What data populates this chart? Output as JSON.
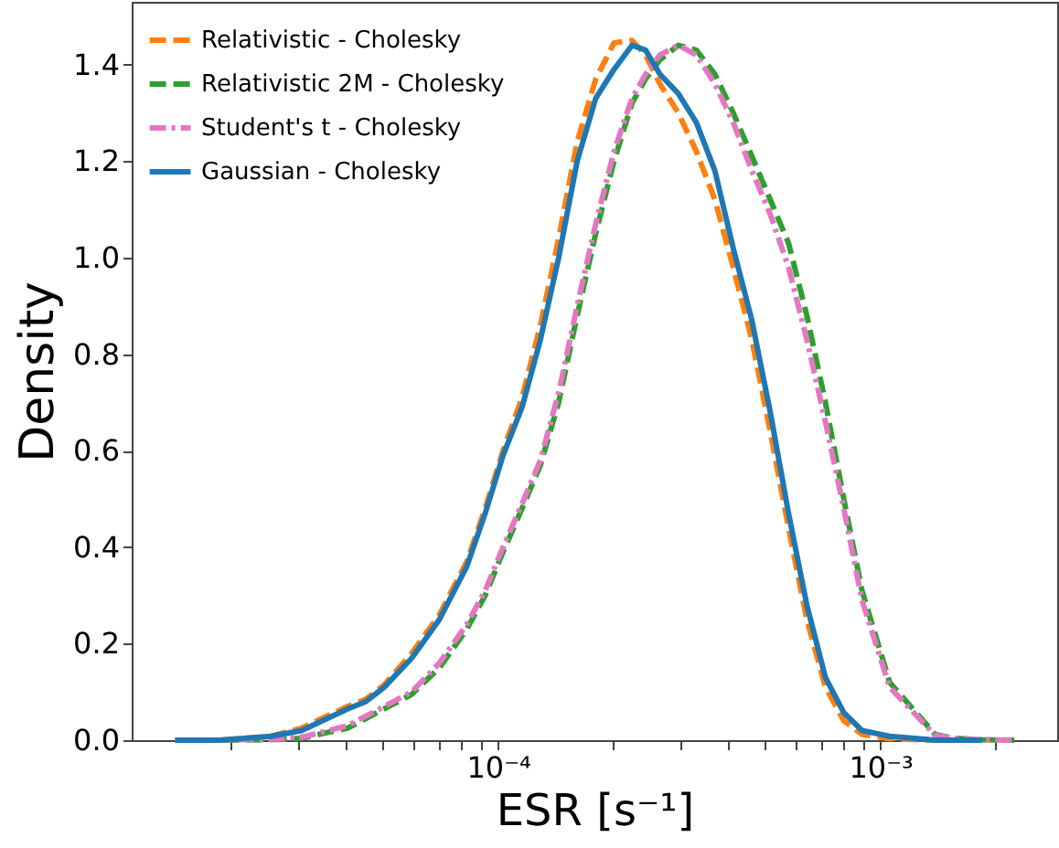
{
  "chart_data": {
    "type": "line",
    "xlabel": "ESR [s⁻¹]",
    "ylabel": "Density",
    "log": "x",
    "grid": false,
    "legend": "top left",
    "marker": "none",
    "x": [
      1.43e-05,
      1.86e-05,
      2.54e-05,
      3.06e-05,
      4.04e-05,
      4.51e-05,
      5.04e-05,
      5.94e-05,
      7.02e-05,
      8.28e-05,
      9.25e-05,
      0.000103,
      0.0001155,
      0.000129,
      0.000144,
      0.000161,
      0.00018,
      0.000201,
      0.000224,
      0.000243,
      0.000265,
      0.000296,
      0.00033,
      0.000369,
      0.000412,
      0.000461,
      0.000515,
      0.000575,
      0.000642,
      0.000718,
      0.000802,
      0.000895,
      0.001057,
      0.00139,
      0.00156,
      0.00184,
      0.00224
    ],
    "series": [
      {
        "name": "Relativistic - Cholesky",
        "color": "#ff7f0e",
        "line_style": "dashed",
        "values": [
          0,
          0,
          0.008,
          0.025,
          0.07,
          0.085,
          0.115,
          0.18,
          0.26,
          0.37,
          0.48,
          0.6,
          0.71,
          0.86,
          1.04,
          1.24,
          1.37,
          1.445,
          1.45,
          1.42,
          1.36,
          1.3,
          1.22,
          1.12,
          0.98,
          0.83,
          0.64,
          0.44,
          0.25,
          0.11,
          0.04,
          0.012,
          0.003,
          0,
          0,
          0,
          null
        ]
      },
      {
        "name": "Relativistic 2M - Cholesky",
        "color": "#2ca02c",
        "line_style": "dashed",
        "values": [
          0,
          0,
          0.001,
          0.004,
          0.025,
          0.045,
          0.065,
          0.095,
          0.15,
          0.23,
          0.3,
          0.39,
          0.48,
          0.57,
          0.7,
          0.88,
          1.05,
          1.2,
          1.32,
          1.37,
          1.41,
          1.44,
          1.43,
          1.38,
          1.3,
          1.21,
          1.12,
          1.03,
          0.88,
          0.7,
          0.5,
          0.31,
          0.12,
          0.012,
          0.004,
          0.001,
          0
        ]
      },
      {
        "name": "Student's t - Cholesky",
        "color": "#e377c2",
        "line_style": "dashdot",
        "values": [
          0,
          0,
          0.002,
          0.006,
          0.03,
          0.05,
          0.07,
          0.1,
          0.16,
          0.24,
          0.31,
          0.4,
          0.49,
          0.58,
          0.72,
          0.9,
          1.07,
          1.22,
          1.33,
          1.38,
          1.42,
          1.44,
          1.42,
          1.36,
          1.28,
          1.18,
          1.09,
          0.98,
          0.83,
          0.66,
          0.48,
          0.29,
          0.11,
          0.01,
          0.004,
          0.001,
          0
        ]
      },
      {
        "name": "Gaussian - Cholesky",
        "color": "#1f77b4",
        "line_style": "solid",
        "values": [
          0,
          0,
          0.008,
          0.02,
          0.065,
          0.08,
          0.11,
          0.17,
          0.25,
          0.36,
          0.47,
          0.59,
          0.69,
          0.83,
          1.0,
          1.2,
          1.33,
          1.39,
          1.44,
          1.43,
          1.38,
          1.34,
          1.28,
          1.18,
          1.02,
          0.87,
          0.68,
          0.47,
          0.28,
          0.13,
          0.057,
          0.02,
          0.008,
          0,
          0,
          0,
          null
        ]
      }
    ],
    "xlim": [
      1.1e-05,
      0.0029
    ],
    "xticks": [
      {
        "value": 2e-05,
        "label": null
      },
      {
        "value": 3e-05,
        "label": null
      },
      {
        "value": 4e-05,
        "label": null
      },
      {
        "value": 5e-05,
        "label": null
      },
      {
        "value": 6e-05,
        "label": null
      },
      {
        "value": 7e-05,
        "label": null
      },
      {
        "value": 8e-05,
        "label": null
      },
      {
        "value": 9e-05,
        "label": null
      },
      {
        "value": 0.0001,
        "label": "10⁻⁴"
      },
      {
        "value": 0.0002,
        "label": null
      },
      {
        "value": 0.0003,
        "label": null
      },
      {
        "value": 0.0004,
        "label": null
      },
      {
        "value": 0.0005,
        "label": null
      },
      {
        "value": 0.0006,
        "label": null
      },
      {
        "value": 0.0007,
        "label": null
      },
      {
        "value": 0.0008,
        "label": null
      },
      {
        "value": 0.0009,
        "label": null
      },
      {
        "value": 0.001,
        "label": "10⁻³"
      },
      {
        "value": 0.002,
        "label": null
      }
    ],
    "ylim": [
      0,
      1.53
    ],
    "yticks": [
      {
        "value": 0,
        "label": "0.0"
      },
      {
        "value": 0.2,
        "label": "0.2"
      },
      {
        "value": 0.4,
        "label": "0.4"
      },
      {
        "value": 0.6,
        "label": "0.6"
      },
      {
        "value": 0.8,
        "label": "0.8"
      },
      {
        "value": 1.0,
        "label": "1.0"
      },
      {
        "value": 1.2,
        "label": "1.2"
      },
      {
        "value": 1.4,
        "label": "1.4"
      }
    ]
  }
}
